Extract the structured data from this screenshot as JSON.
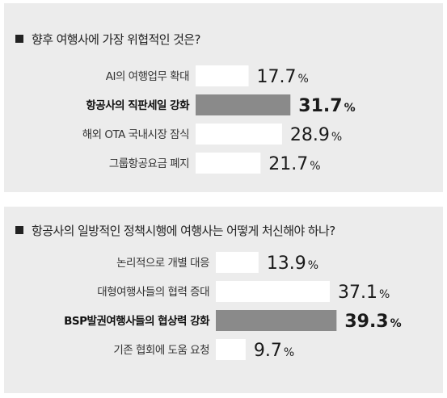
{
  "colors": {
    "bar": "#ffffff",
    "highlight_bar": "#8a8a8a",
    "panel": "#ececec"
  },
  "chart_data": [
    {
      "type": "bar",
      "orientation": "horizontal",
      "title": "향후 여행사에 가장 위협적인 것은?",
      "categories": [
        "AI의 여행업무 확대",
        "항공사의 직판세일 강화",
        "해외 OTA 국내시장 잠식",
        "그룹항공요금 폐지"
      ],
      "values": [
        17.7,
        31.7,
        28.9,
        21.7
      ],
      "value_labels": [
        "17.7",
        "31.7",
        "28.9",
        "21.7"
      ],
      "unit": "%",
      "highlight_index": 1
    },
    {
      "type": "bar",
      "orientation": "horizontal",
      "title": "항공사의 일방적인 정책시행에 여행사는 어떻게 처신해야 하나?",
      "categories": [
        "논리적으로 개별 대응",
        "대형여행사들의 협력 증대",
        "BSP발권여행사들의 협상력 강화",
        "기존 협회에 도움 요청"
      ],
      "values": [
        13.9,
        37.1,
        39.3,
        9.7
      ],
      "value_labels": [
        "13.9",
        "37.1",
        "39.3",
        "9.7"
      ],
      "unit": "%",
      "highlight_index": 2
    }
  ]
}
